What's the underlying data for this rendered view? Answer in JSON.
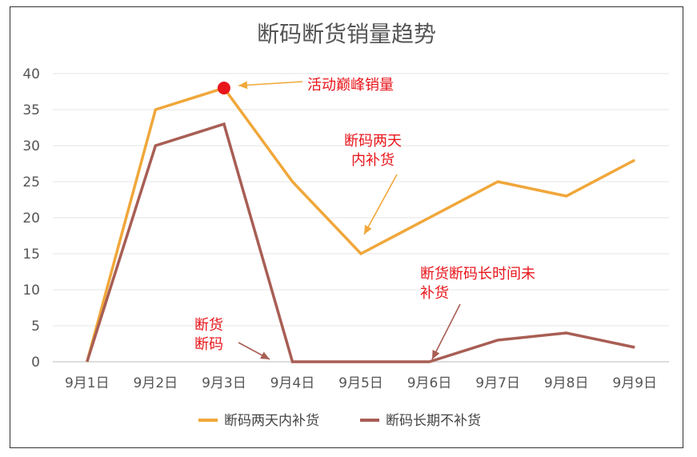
{
  "chart_data": {
    "type": "line",
    "title": "断码断货销量趋势",
    "categories": [
      "9月1日",
      "9月2日",
      "9月3日",
      "9月4日",
      "9月5日",
      "9月6日",
      "9月7日",
      "9月8日",
      "9月9日"
    ],
    "ylim": [
      0,
      40
    ],
    "yticks": [
      "0",
      "5",
      "10",
      "15",
      "20",
      "25",
      "30",
      "35",
      "40"
    ],
    "grid": true,
    "legend_position": "bottom",
    "series": [
      {
        "name": "断码两天内补货",
        "color": "#f0a73a",
        "values": [
          0,
          35,
          38,
          25,
          15,
          20,
          25,
          23,
          28
        ]
      },
      {
        "name": "断码长期不补货",
        "color": "#a85e54",
        "values": [
          0,
          30,
          33,
          0,
          0,
          0,
          3,
          4,
          2
        ]
      }
    ],
    "highlight_point": {
      "series": 0,
      "index": 2,
      "color": "#e8151b"
    },
    "annotations": [
      {
        "lines": [
          "活动巅峰销量"
        ],
        "arrow_color": "#f0a73a"
      },
      {
        "lines": [
          "断码两天",
          "内补货"
        ],
        "arrow_color": "#f0a73a"
      },
      {
        "lines": [
          "断货",
          "断码"
        ],
        "arrow_color": "#a85e54"
      },
      {
        "lines": [
          "断货断码长时间未",
          "补货"
        ],
        "arrow_color": "#a85e54"
      }
    ]
  }
}
